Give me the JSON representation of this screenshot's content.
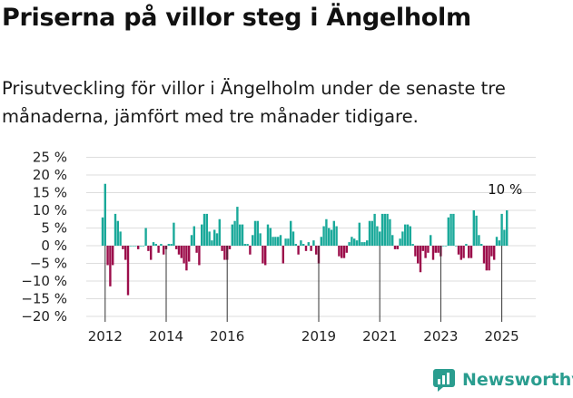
{
  "title": "Priserna på villor steg i Ängelholm",
  "subtitle": "Prisutveckling för villor i Ängelholm under de senaste tre månaderna, jämfört med tre månader tidigare.",
  "brand": "Newsworthy",
  "colors": {
    "positive": "#1aa99a",
    "negative": "#9c0e4b",
    "grid": "#dddddd",
    "text": "#222222",
    "brand": "#2a9d8f"
  },
  "chart_data": {
    "type": "bar",
    "title": "",
    "xlabel": "",
    "ylabel": "",
    "ylim": [
      -20,
      25
    ],
    "yticks": [
      25,
      20,
      15,
      10,
      5,
      0,
      -5,
      -10,
      -15,
      -20
    ],
    "ytick_labels": [
      "25 %",
      "20 %",
      "15 %",
      "10 %",
      "5 %",
      "0 %",
      "−5 %",
      "−10 %",
      "−15 %",
      "−20 %"
    ],
    "x_start": "2011-12",
    "xtick_labels": [
      "2012",
      "2014",
      "2016",
      "2019",
      "2021",
      "2023",
      "2025"
    ],
    "xtick_years": [
      2012,
      2014,
      2016,
      2019,
      2021,
      2023,
      2025
    ],
    "grid": true,
    "annotation": "10 %",
    "values": [
      8,
      17.5,
      -5.5,
      -11.5,
      -5.5,
      9,
      7,
      4,
      -1,
      -4,
      -14,
      0,
      0,
      0,
      -1,
      0,
      0,
      5,
      -1.5,
      -4,
      1,
      0.5,
      -2,
      0.5,
      -2.5,
      -1,
      0.5,
      0.5,
      6.5,
      -1,
      -2.5,
      -3.5,
      -5,
      -7,
      -4.5,
      3,
      5.5,
      -2,
      -5.5,
      6,
      9,
      9,
      4,
      1.5,
      4.5,
      3.5,
      7.5,
      -1.5,
      -4,
      -4,
      -1,
      6,
      7,
      11,
      6,
      6,
      0.5,
      0.5,
      -2.5,
      3,
      7,
      7,
      3.5,
      -5,
      -5.5,
      6,
      5,
      2.5,
      2.5,
      2.5,
      3,
      -5,
      2,
      2,
      7,
      4,
      0.5,
      -2.5,
      1.5,
      0.5,
      -1.5,
      1,
      -1.5,
      1.5,
      -2.5,
      -5,
      2.5,
      5.5,
      7.5,
      5,
      4.5,
      7,
      5.5,
      -3,
      -3.5,
      -3.5,
      -2,
      1,
      2.5,
      2,
      1.5,
      6.5,
      1,
      1,
      1.5,
      7,
      7,
      9,
      5.5,
      4,
      9,
      9,
      9,
      7.5,
      3,
      -1,
      -1,
      2,
      4,
      6,
      6,
      5.5,
      0.5,
      -3,
      -5,
      -7.5,
      -1.5,
      -3.5,
      -2,
      3,
      -4,
      -2,
      -2,
      -3,
      0,
      0,
      8,
      9,
      9,
      0,
      -2.5,
      -4,
      -3.5,
      0.5,
      -3.5,
      -3.5,
      10,
      8.5,
      3,
      0.5,
      -5,
      -7,
      -7,
      -3,
      -4,
      2.5,
      1.5,
      9,
      4.5,
      10
    ]
  }
}
